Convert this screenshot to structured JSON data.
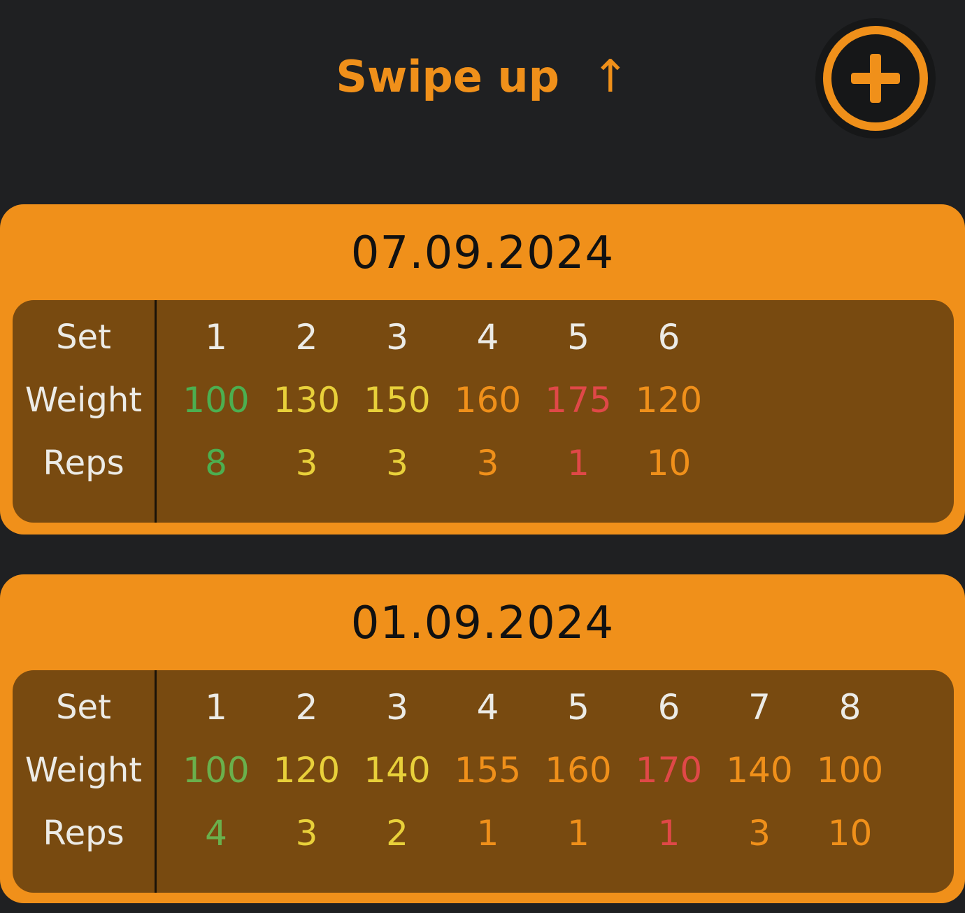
{
  "header": {
    "swipe_text": "Swipe up",
    "swipe_arrow": "↑",
    "add_icon": "plus-circle-icon"
  },
  "labels": {
    "set": "Set",
    "weight": "Weight",
    "reps": "Reps"
  },
  "colors": {
    "accent": "#f0901a",
    "background": "#1f2022",
    "table_bg": "#784a10",
    "green": "#4caf50",
    "yellow": "#e8d03a",
    "orange": "#f0901a",
    "red": "#e04848"
  },
  "workouts": [
    {
      "date": "07.09.2024",
      "sets": [
        {
          "set": "1",
          "weight": "100",
          "reps": "8",
          "color": "#4caf50"
        },
        {
          "set": "2",
          "weight": "130",
          "reps": "3",
          "color": "#e8d03a"
        },
        {
          "set": "3",
          "weight": "150",
          "reps": "3",
          "color": "#e8d03a"
        },
        {
          "set": "4",
          "weight": "160",
          "reps": "3",
          "color": "#f0901a"
        },
        {
          "set": "5",
          "weight": "175",
          "reps": "1",
          "color": "#e04848"
        },
        {
          "set": "6",
          "weight": "120",
          "reps": "10",
          "color": "#f0901a"
        }
      ]
    },
    {
      "date": "01.09.2024",
      "sets": [
        {
          "set": "1",
          "weight": "100",
          "reps": "4",
          "color": "#6ab04c"
        },
        {
          "set": "2",
          "weight": "120",
          "reps": "3",
          "color": "#e8d03a"
        },
        {
          "set": "3",
          "weight": "140",
          "reps": "2",
          "color": "#e8d03a"
        },
        {
          "set": "4",
          "weight": "155",
          "reps": "1",
          "color": "#f0901a"
        },
        {
          "set": "5",
          "weight": "160",
          "reps": "1",
          "color": "#f0901a"
        },
        {
          "set": "6",
          "weight": "170",
          "reps": "1",
          "color": "#e04848"
        },
        {
          "set": "7",
          "weight": "140",
          "reps": "3",
          "color": "#f0901a"
        },
        {
          "set": "8",
          "weight": "100",
          "reps": "10",
          "color": "#f0901a"
        }
      ]
    }
  ]
}
